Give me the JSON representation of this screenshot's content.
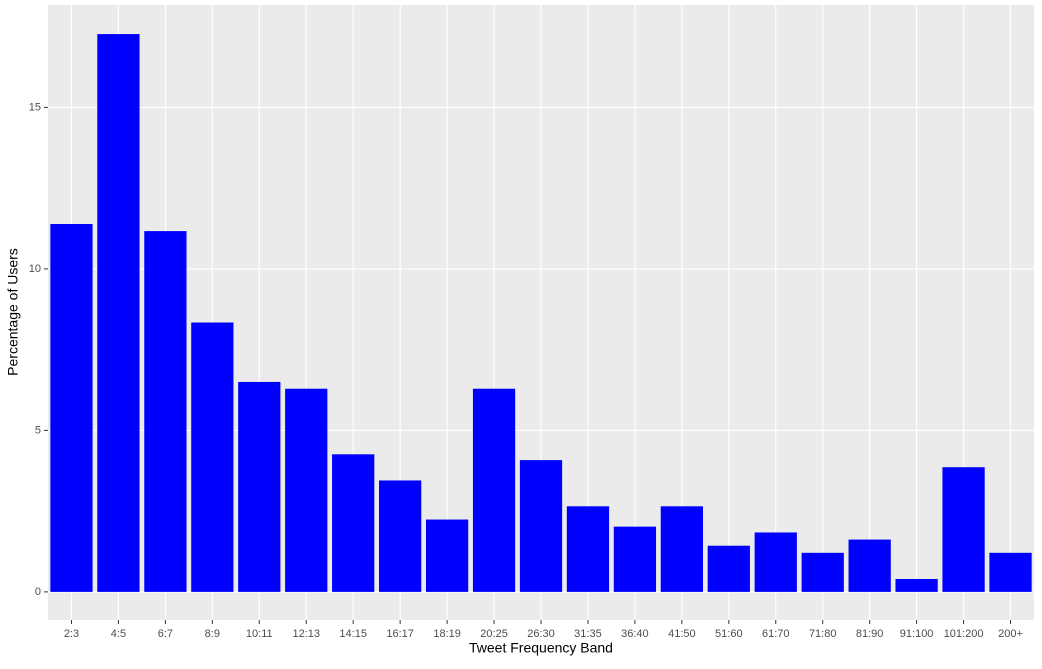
{
  "chart_data": {
    "type": "bar",
    "x_label": "Tweet Frequency Band",
    "y_label": "Percentage of Users",
    "categories": [
      "2:3",
      "4:5",
      "6:7",
      "8:9",
      "10:11",
      "12:13",
      "14:15",
      "16:17",
      "18:19",
      "20:25",
      "26:30",
      "31:35",
      "36:40",
      "41:50",
      "51:60",
      "61:70",
      "71:80",
      "81:90",
      "91:100",
      "101:200",
      "200+"
    ],
    "values": [
      11.39,
      17.27,
      11.17,
      8.34,
      6.5,
      6.29,
      4.26,
      3.45,
      2.24,
      6.29,
      4.08,
      2.65,
      2.02,
      2.65,
      1.43,
      1.84,
      1.21,
      1.62,
      0.4,
      3.86,
      1.21
    ],
    "color": "#0000ff",
    "ylim": [
      -0.87,
      18.17
    ],
    "yticks": [
      0,
      5,
      10,
      15
    ],
    "grid": true
  }
}
